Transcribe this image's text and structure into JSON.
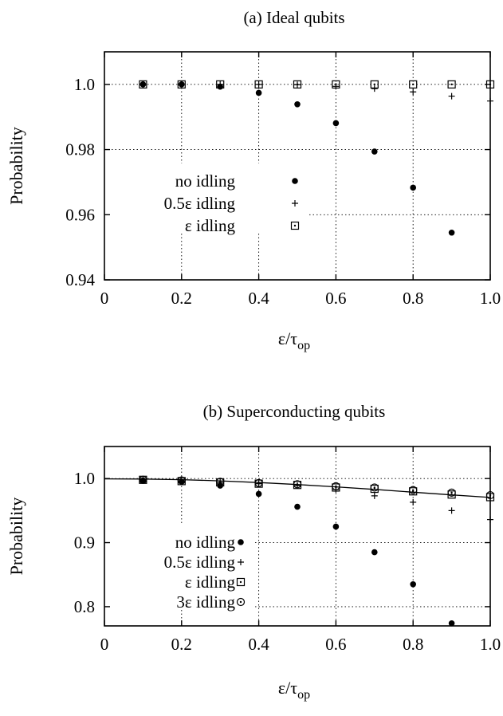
{
  "chart_data": [
    {
      "type": "scatter",
      "title": "(a) Ideal qubits",
      "xlabel_main": "ε/τ",
      "xlabel_sub": "op",
      "ylabel": "Probability",
      "xlim": [
        0,
        1.0
      ],
      "ylim": [
        0.94,
        1.01
      ],
      "xticks": [
        0,
        0.2,
        0.4,
        0.6,
        0.8,
        1.0
      ],
      "xtick_labels": [
        "0",
        "0.2",
        "0.4",
        "0.6",
        "0.8",
        "1.0"
      ],
      "yticks": [
        0.94,
        0.96,
        0.98,
        1.0
      ],
      "ytick_labels": [
        "0.94",
        "0.96",
        "0.98",
        "1.0"
      ],
      "grid": true,
      "legend_position": "middle-left",
      "series": [
        {
          "name": "no idling",
          "marker": "filled-circle",
          "x": [
            0.1,
            0.2,
            0.3,
            0.4,
            0.5,
            0.6,
            0.7,
            0.8,
            0.9
          ],
          "y": [
            1.0,
            1.0,
            0.9993,
            0.9974,
            0.9939,
            0.9881,
            0.9794,
            0.9683,
            0.9545
          ]
        },
        {
          "name": "0.5ε idling",
          "marker": "plus",
          "x": [
            0.1,
            0.2,
            0.3,
            0.4,
            0.5,
            0.6,
            0.7,
            0.8,
            0.9,
            1.0
          ],
          "y": [
            1.0,
            1.0,
            1.0,
            1.0,
            0.9999,
            0.9994,
            0.9987,
            0.9977,
            0.9964,
            0.9949
          ]
        },
        {
          "name": "ε idling",
          "marker": "boxed-dot",
          "x": [
            0.1,
            0.2,
            0.3,
            0.4,
            0.5,
            0.6,
            0.7,
            0.8,
            0.9,
            1.0
          ],
          "y": [
            1.0,
            1.0,
            1.0,
            1.0,
            1.0,
            1.0,
            1.0,
            1.0,
            1.0,
            1.0
          ]
        }
      ]
    },
    {
      "type": "scatter",
      "title": "(b) Superconducting qubits",
      "xlabel_main": "ε/τ",
      "xlabel_sub": "op",
      "ylabel": "Probability",
      "xlim": [
        0,
        1.0
      ],
      "ylim": [
        0.77,
        1.05
      ],
      "xticks": [
        0,
        0.2,
        0.4,
        0.6,
        0.8,
        1.0
      ],
      "xtick_labels": [
        "0",
        "0.2",
        "0.4",
        "0.6",
        "0.8",
        "1.0"
      ],
      "yticks": [
        0.8,
        0.9,
        1.0
      ],
      "ytick_labels": [
        "0.8",
        "0.9",
        "1.0"
      ],
      "grid": true,
      "legend_position": "middle-left",
      "series": [
        {
          "name": "no idling",
          "marker": "filled-circle",
          "x": [
            0.1,
            0.2,
            0.3,
            0.4,
            0.5,
            0.6,
            0.7,
            0.8,
            0.9
          ],
          "y": [
            0.997,
            0.995,
            0.989,
            0.976,
            0.956,
            0.925,
            0.885,
            0.835,
            0.774
          ]
        },
        {
          "name": "0.5ε idling",
          "marker": "plus",
          "x": [
            0.1,
            0.2,
            0.3,
            0.4,
            0.5,
            0.6,
            0.7,
            0.8,
            0.9,
            1.0
          ],
          "y": [
            0.998,
            0.996,
            0.994,
            0.992,
            0.989,
            0.983,
            0.973,
            0.963,
            0.95,
            0.936
          ]
        },
        {
          "name": "ε idling",
          "marker": "boxed-dot",
          "x": [
            0.1,
            0.2,
            0.3,
            0.4,
            0.5,
            0.6,
            0.7,
            0.8,
            0.9,
            1.0
          ],
          "y": [
            0.998,
            0.996,
            0.994,
            0.992,
            0.99,
            0.986,
            0.984,
            0.98,
            0.975,
            0.971
          ]
        },
        {
          "name": "3ε idling",
          "marker": "dotted-circle",
          "x": [
            0.1,
            0.2,
            0.3,
            0.4,
            0.5,
            0.6,
            0.7,
            0.8,
            0.9,
            1.0
          ],
          "y": [
            0.998,
            0.997,
            0.995,
            0.993,
            0.991,
            0.988,
            0.986,
            0.982,
            0.978,
            0.974
          ]
        }
      ],
      "curve": {
        "x": [
          0.0,
          0.1,
          0.2,
          0.3,
          0.4,
          0.5,
          0.6,
          0.7,
          0.8,
          0.9,
          1.0
        ],
        "y": [
          0.9995,
          0.9992,
          0.9982,
          0.9964,
          0.9938,
          0.9906,
          0.987,
          0.983,
          0.9787,
          0.9745,
          0.9705
        ]
      }
    }
  ]
}
